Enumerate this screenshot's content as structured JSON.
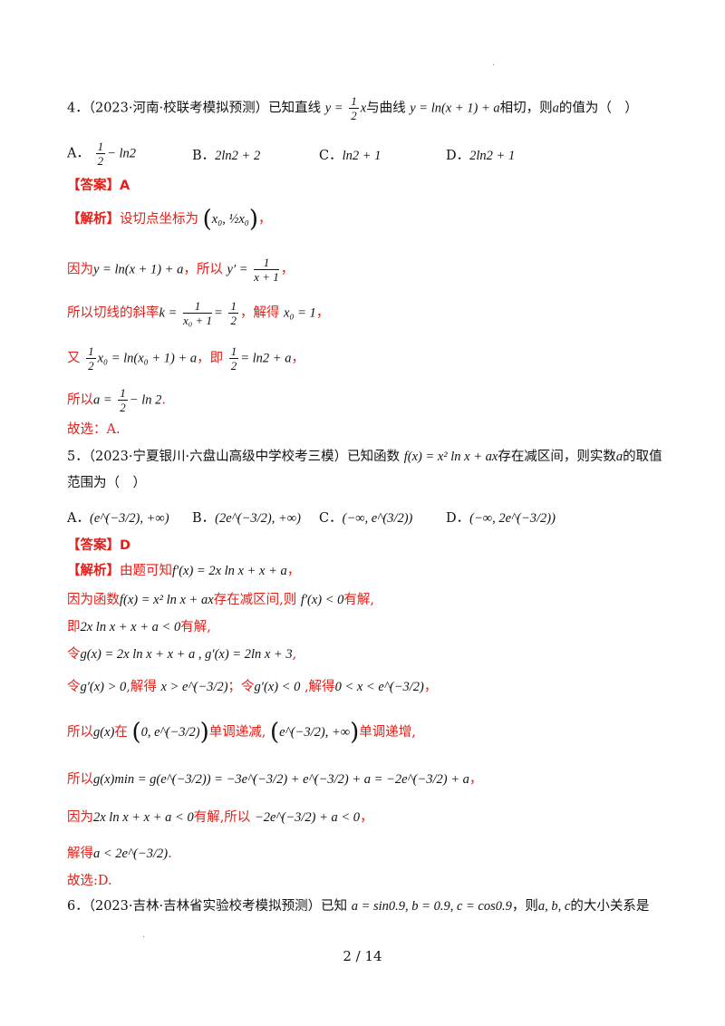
{
  "q4": {
    "num": "4．",
    "source": "（2023·河南·校联考模拟预测）",
    "stem_a": "已知直线",
    "line_lhs": "y =",
    "line_num": "1",
    "line_den": "2",
    "line_var": "x",
    "stem_b": "与曲线",
    "curve": "y = ln(x + 1) + a",
    "stem_c": "相切，则",
    "var_a": "a",
    "stem_d": "的值为（　）",
    "opt_a_label": "A．",
    "opt_a_num": "1",
    "opt_a_den": "2",
    "opt_a_rest": "− ln2",
    "opt_b_label": "B．",
    "opt_b": "2ln2 + 2",
    "opt_c_label": "C．",
    "opt_c": "ln2 + 1",
    "opt_d_label": "D．",
    "opt_d": "2ln2 + 1",
    "answer_tag": "【答案】",
    "answer": "A",
    "analysis_tag": "【解析】",
    "s1": "设切点坐标为",
    "s1_pt": "x₀, ½x₀",
    "s2_a": "因为",
    "s2_eq": "y = ln(x + 1) + a",
    "s2_b": "，所以",
    "s2_d": "y′ =",
    "s2_num": "1",
    "s2_den": "x + 1",
    "s3_a": "所以切线的斜率",
    "s3_k": "k =",
    "s3_num": "1",
    "s3_den": "x₀ + 1",
    "s3_eq": "=",
    "s3_num2": "1",
    "s3_den2": "2",
    "s3_b": "，解得",
    "s3_x": "x₀ = 1",
    "s4_a": "又",
    "s4_num": "1",
    "s4_den": "2",
    "s4_eq": "x₀ = ln(x₀ + 1) + a",
    "s4_b": "，即",
    "s4_num2": "1",
    "s4_den2": "2",
    "s4_eq2": "= ln2 + a",
    "s5_a": "所以",
    "s5_eq": "a =",
    "s5_num": "1",
    "s5_den": "2",
    "s5_rest": "− ln 2",
    "choose": "故选：A."
  },
  "q5": {
    "num": "5．",
    "source": "（2023·宁夏银川·六盘山高级中学校考三模）",
    "stem_a": "已知函数",
    "func": "f(x) = x² ln x + ax",
    "stem_b": "存在减区间，则实数",
    "var_a": "a",
    "stem_c": "的取值",
    "stem_d": "范围为（　）",
    "opt_a_label": "A．",
    "opt_a": "(e^(−3/2), +∞)",
    "opt_b_label": "B．",
    "opt_b": "(2e^(−3/2), +∞)",
    "opt_c_label": "C．",
    "opt_c": "(−∞, e^(3/2))",
    "opt_d_label": "D．",
    "opt_d": "(−∞, 2e^(−3/2))",
    "answer_tag": "【答案】",
    "answer": "D",
    "analysis_tag": "【解析】",
    "s1_a": "由题可知",
    "s1_eq": "f′(x) = 2x ln x + x + a",
    "s2_a": "因为函数",
    "s2_eq": "f(x) = x² ln x + ax",
    "s2_b": "存在减区间,则",
    "s2_eq2": "f′(x) < 0",
    "s2_c": "有解,",
    "s3_a": "即",
    "s3_eq": "2x ln x + x + a < 0",
    "s3_b": "有解,",
    "s4_a": "令",
    "s4_eq": "g(x) = 2x ln x + x + a , g′(x) = 2ln x + 3",
    "s5_a": "令",
    "s5_eq1": "g′(x) > 0",
    "s5_b": ",解得",
    "s5_eq2": "x > e^(−3/2)",
    "s5_c": "；令",
    "s5_eq3": "g′(x) < 0",
    "s5_d": ",解得",
    "s5_eq4": "0 < x < e^(−3/2)",
    "s6_a": "所以",
    "s6_g": "g(x)",
    "s6_b": "在",
    "s6_int1": "0, e^(−3/2)",
    "s6_c": "单调递减,",
    "s6_int2": "e^(−3/2), +∞",
    "s6_d": "单调递增,",
    "s7_a": "所以",
    "s7_eq": "g(x)min = g(e^(−3/2)) = −3e^(−3/2) + e^(−3/2) + a = −2e^(−3/2) + a",
    "s8_a": "因为",
    "s8_eq": "2x ln x + x + a < 0",
    "s8_b": "有解,所以",
    "s8_eq2": "−2e^(−3/2) + a < 0",
    "s9_a": "解得",
    "s9_eq": "a < 2e^(−3/2)",
    "choose": "故选:D."
  },
  "q6": {
    "num": "6．",
    "source": "（2023·吉林·吉林省实验校考模拟预测）",
    "stem_a": "已知",
    "cond": "a = sin0.9, b = 0.9, c = cos0.9",
    "stem_b": "，则",
    "vars": "a, b, c",
    "stem_c": "的大小关系是"
  },
  "footer": {
    "page": "2 / 14"
  }
}
